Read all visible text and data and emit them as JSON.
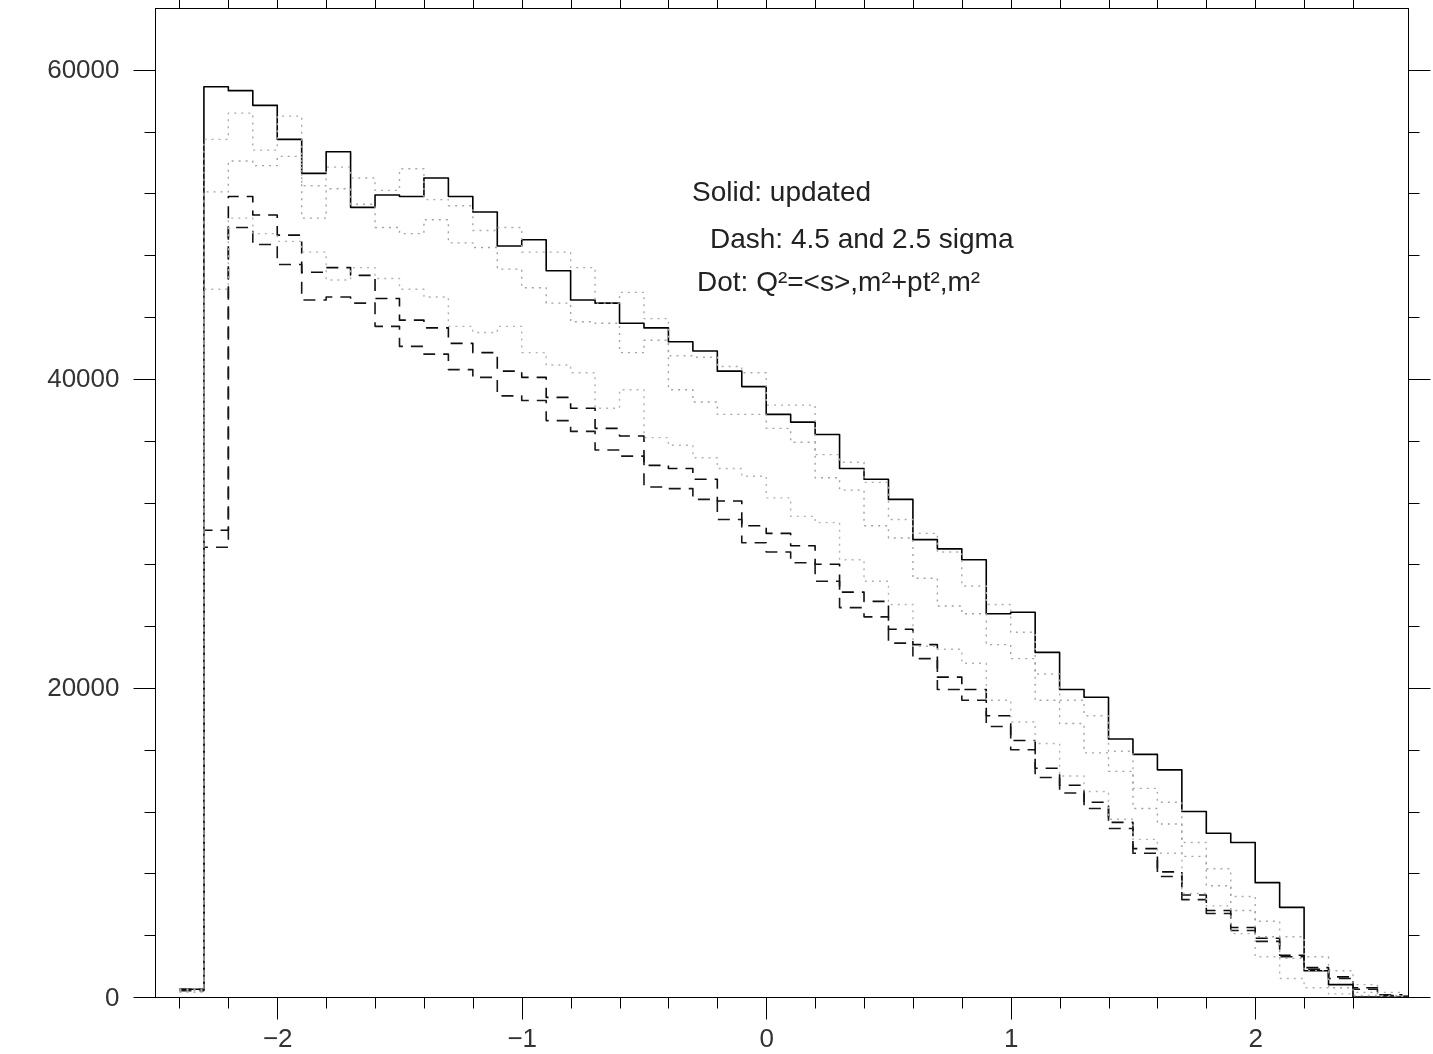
{
  "chart_data": {
    "type": "histogram",
    "bins": [
      -2.4,
      -2.3,
      -2.2,
      -2.1,
      -2.0,
      -1.9,
      -1.8,
      -1.7,
      -1.6,
      -1.5,
      -1.4,
      -1.3,
      -1.2,
      -1.1,
      -1.0,
      -0.9,
      -0.8,
      -0.7,
      -0.6,
      -0.5,
      -0.4,
      -0.3,
      -0.2,
      -0.1,
      0.0,
      0.1,
      0.2,
      0.3,
      0.4,
      0.5,
      0.6,
      0.7,
      0.8,
      0.9,
      1.0,
      1.1,
      1.2,
      1.3,
      1.4,
      1.5,
      1.6,
      1.7,
      1.8,
      1.9,
      2.0,
      2.1,
      2.2,
      2.3,
      2.4,
      2.5,
      2.6,
      2.7
    ],
    "series": [
      {
        "color": "#000000",
        "line_style": "solid",
        "values": [
          500,
          58900,
          58650,
          57700,
          55500,
          53300,
          54700,
          51100,
          51900,
          51800,
          53000,
          51800,
          50800,
          48600,
          49000,
          47000,
          45100,
          44900,
          43600,
          43300,
          42400,
          41800,
          40500,
          39500,
          37700,
          37200,
          36400,
          34200,
          33500,
          32200,
          29600,
          29000,
          28300,
          24800,
          24900,
          22300,
          19900,
          19400,
          16700,
          15700,
          14700,
          12000,
          10600,
          10000,
          7400,
          5800,
          1700,
          800,
          0,
          0,
          0
        ]
      },
      {
        "color": "#0c0c0c",
        "line_style": "dashed",
        "values": [
          500,
          30200,
          51800,
          50600,
          49300,
          46900,
          47200,
          46700,
          45200,
          43800,
          43300,
          42300,
          41700,
          40500,
          40100,
          38800,
          38100,
          36800,
          36300,
          34400,
          34200,
          33500,
          32100,
          30500,
          30000,
          29200,
          28000,
          26200,
          25600,
          23800,
          22800,
          20700,
          19900,
          18200,
          16600,
          14800,
          13700,
          12600,
          11300,
          9600,
          8100,
          6600,
          5600,
          4500,
          3800,
          2700,
          1900,
          1300,
          600,
          150,
          50
        ]
      },
      {
        "color": "#181818",
        "line_style": "dashed",
        "values": [
          400,
          29100,
          49800,
          48700,
          47400,
          45100,
          45300,
          44900,
          43400,
          42100,
          41600,
          40600,
          40100,
          38900,
          38600,
          37300,
          36600,
          35400,
          35000,
          33000,
          32900,
          32200,
          30900,
          29400,
          28800,
          28100,
          26900,
          25200,
          24600,
          22900,
          21900,
          19900,
          19200,
          17500,
          16000,
          14200,
          13200,
          12200,
          10900,
          9300,
          7800,
          6300,
          5400,
          4300,
          3600,
          2600,
          1800,
          1200,
          500,
          100,
          30
        ]
      },
      {
        "color": "#aaaaaa",
        "line_style": "dotted",
        "values": [
          500,
          55500,
          57200,
          54800,
          57000,
          52500,
          53700,
          53000,
          52200,
          53600,
          51600,
          51200,
          49600,
          49800,
          48200,
          48200,
          47200,
          44900,
          45600,
          43900,
          41500,
          41400,
          40800,
          40400,
          38300,
          38300,
          35100,
          34600,
          33300,
          30900,
          30000,
          28800,
          26600,
          25400,
          23600,
          20900,
          19200,
          18200,
          15900,
          13500,
          12600,
          10000,
          8300,
          6500,
          4900,
          3900,
          2600,
          1700,
          800,
          300,
          100
        ]
      },
      {
        "color": "#a2a2a2",
        "line_style": "dotted",
        "values": [
          400,
          52100,
          54100,
          53800,
          54400,
          50400,
          52300,
          51300,
          49800,
          49400,
          50300,
          48800,
          48500,
          47100,
          45900,
          44900,
          43700,
          43600,
          41700,
          42500,
          39300,
          38500,
          37700,
          37700,
          36800,
          35900,
          33600,
          32800,
          30500,
          29700,
          27100,
          25300,
          24800,
          22800,
          21900,
          19200,
          17700,
          15800,
          14600,
          12200,
          11200,
          9100,
          7200,
          5600,
          3900,
          2500,
          1700,
          600,
          300,
          100,
          0
        ]
      },
      {
        "color": "#b2b2b2",
        "line_style": "dotted",
        "values": [
          300,
          45800,
          50400,
          49400,
          48900,
          48200,
          46400,
          47200,
          46500,
          45800,
          45300,
          43400,
          43000,
          43400,
          41700,
          40900,
          40400,
          38100,
          39300,
          36200,
          35700,
          34900,
          34200,
          33700,
          32300,
          31100,
          30700,
          28300,
          26900,
          25400,
          22700,
          22500,
          21600,
          19200,
          17800,
          16400,
          14300,
          13300,
          11500,
          10200,
          9300,
          6700,
          5900,
          4100,
          2600,
          1200,
          600,
          200,
          100,
          0,
          0
        ]
      }
    ],
    "xlim": [
      -2.5,
      2.625
    ],
    "ylim": [
      0,
      64000
    ],
    "xticks": [
      {
        "value": -2.4,
        "label": null
      },
      {
        "value": -2.2,
        "label": null
      },
      -2,
      {
        "value": -1.8,
        "label": null
      },
      {
        "value": -1.6,
        "label": null
      },
      {
        "value": -1.4,
        "label": null
      },
      {
        "value": -1.2,
        "label": null
      },
      -1,
      {
        "value": -0.8,
        "label": null
      },
      {
        "value": -0.6,
        "label": null
      },
      {
        "value": -0.4,
        "label": null
      },
      {
        "value": -0.2,
        "label": null
      },
      0,
      {
        "value": 0.2,
        "label": null
      },
      {
        "value": 0.4,
        "label": null
      },
      {
        "value": 0.6,
        "label": null
      },
      {
        "value": 0.8,
        "label": null
      },
      1,
      {
        "value": 1.2,
        "label": null
      },
      {
        "value": 1.4,
        "label": null
      },
      {
        "value": 1.6,
        "label": null
      },
      {
        "value": 1.8,
        "label": null
      },
      2,
      {
        "value": 2.2,
        "label": null
      },
      {
        "value": 2.4,
        "label": null
      }
    ],
    "yticks": [
      0,
      {
        "value": 4000,
        "label": null
      },
      {
        "value": 8000,
        "label": null
      },
      {
        "value": 12000,
        "label": null
      },
      {
        "value": 16000,
        "label": null
      },
      20000,
      {
        "value": 24000,
        "label": null
      },
      {
        "value": 28000,
        "label": null
      },
      {
        "value": 32000,
        "label": null
      },
      {
        "value": 36000,
        "label": null
      },
      40000,
      {
        "value": 44000,
        "label": null
      },
      {
        "value": 48000,
        "label": null
      },
      {
        "value": 52000,
        "label": null
      },
      {
        "value": 56000,
        "label": null
      },
      60000
    ],
    "annotations": [
      "Solid: updated",
      "Dash: 4.5 and 2.5 sigma",
      "Dot: Q²=<s>,m²+pt²,m²"
    ],
    "grid": false
  }
}
